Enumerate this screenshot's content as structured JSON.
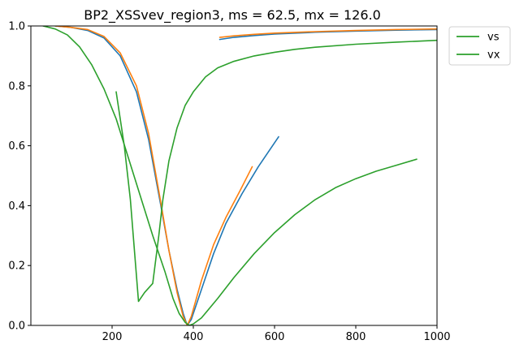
{
  "chart_data": {
    "type": "line",
    "title": "BP2_XSSvev_region3, ms = 62.5, mx = 126.0",
    "xlabel": "",
    "ylabel": "",
    "xlim": [
      0,
      1000
    ],
    "ylim": [
      0,
      1
    ],
    "xticks": [
      200,
      400,
      600,
      800,
      1000
    ],
    "yticks": [
      0.0,
      0.2,
      0.4,
      0.6,
      0.8,
      1.0
    ],
    "xtick_labels": [
      "200",
      "400",
      "600",
      "800",
      "1000"
    ],
    "ytick_labels": [
      "0.0",
      "0.2",
      "0.4",
      "0.6",
      "0.8",
      "1.0"
    ],
    "grid": false,
    "legend": {
      "placement": "outside-top-right",
      "entries": [
        {
          "label": "vs",
          "color": "#2ca02c"
        },
        {
          "label": "vx",
          "color": "#2ca02c"
        }
      ]
    },
    "series": [
      {
        "color": "#1f77b4",
        "points": [
          [
            60,
            1.0
          ],
          [
            100,
            0.995
          ],
          [
            140,
            0.985
          ],
          [
            180,
            0.96
          ],
          [
            220,
            0.9
          ],
          [
            260,
            0.78
          ],
          [
            290,
            0.62
          ],
          [
            320,
            0.4
          ],
          [
            340,
            0.25
          ],
          [
            360,
            0.12
          ],
          [
            375,
            0.04
          ],
          [
            385,
            0.0
          ],
          [
            395,
            0.02
          ],
          [
            420,
            0.12
          ],
          [
            450,
            0.24
          ],
          [
            480,
            0.34
          ],
          [
            520,
            0.44
          ],
          [
            560,
            0.53
          ],
          [
            610,
            0.63
          ]
        ]
      },
      {
        "color": "#ff7f0e",
        "points": [
          [
            60,
            1.0
          ],
          [
            100,
            0.995
          ],
          [
            140,
            0.988
          ],
          [
            180,
            0.965
          ],
          [
            220,
            0.91
          ],
          [
            260,
            0.8
          ],
          [
            290,
            0.64
          ],
          [
            320,
            0.41
          ],
          [
            340,
            0.25
          ],
          [
            360,
            0.11
          ],
          [
            375,
            0.03
          ],
          [
            385,
            0.0
          ],
          [
            395,
            0.03
          ],
          [
            420,
            0.15
          ],
          [
            450,
            0.27
          ],
          [
            480,
            0.36
          ],
          [
            515,
            0.45
          ],
          [
            545,
            0.53
          ]
        ]
      },
      {
        "color": "#1f77b4",
        "points": [
          [
            465,
            0.955
          ],
          [
            500,
            0.962
          ],
          [
            550,
            0.968
          ],
          [
            600,
            0.973
          ],
          [
            700,
            0.979
          ],
          [
            800,
            0.983
          ],
          [
            900,
            0.986
          ],
          [
            1000,
            0.988
          ]
        ]
      },
      {
        "color": "#ff7f0e",
        "points": [
          [
            465,
            0.962
          ],
          [
            500,
            0.967
          ],
          [
            550,
            0.972
          ],
          [
            600,
            0.976
          ],
          [
            700,
            0.981
          ],
          [
            800,
            0.985
          ],
          [
            900,
            0.988
          ],
          [
            1000,
            0.99
          ]
        ]
      },
      {
        "color": "#2ca02c",
        "points": [
          [
            30,
            1.0
          ],
          [
            60,
            0.99
          ],
          [
            90,
            0.97
          ],
          [
            120,
            0.93
          ],
          [
            150,
            0.87
          ],
          [
            180,
            0.79
          ],
          [
            210,
            0.69
          ],
          [
            240,
            0.56
          ],
          [
            270,
            0.43
          ],
          [
            300,
            0.3
          ],
          [
            330,
            0.18
          ],
          [
            350,
            0.09
          ],
          [
            365,
            0.04
          ],
          [
            380,
            0.01
          ],
          [
            390,
            0.0
          ],
          [
            400,
            0.005
          ],
          [
            420,
            0.025
          ],
          [
            460,
            0.09
          ],
          [
            500,
            0.16
          ],
          [
            550,
            0.24
          ],
          [
            600,
            0.31
          ],
          [
            650,
            0.37
          ],
          [
            700,
            0.42
          ],
          [
            750,
            0.46
          ],
          [
            800,
            0.49
          ],
          [
            850,
            0.515
          ],
          [
            900,
            0.535
          ],
          [
            950,
            0.555
          ]
        ]
      },
      {
        "color": "#2ca02c",
        "points": [
          [
            210,
            0.78
          ],
          [
            230,
            0.6
          ],
          [
            245,
            0.42
          ],
          [
            255,
            0.25
          ],
          [
            265,
            0.08
          ],
          [
            280,
            0.11
          ],
          [
            300,
            0.14
          ],
          [
            315,
            0.3
          ],
          [
            325,
            0.42
          ],
          [
            340,
            0.55
          ],
          [
            360,
            0.66
          ],
          [
            380,
            0.735
          ],
          [
            400,
            0.78
          ],
          [
            430,
            0.83
          ],
          [
            460,
            0.86
          ],
          [
            500,
            0.882
          ],
          [
            550,
            0.9
          ],
          [
            600,
            0.912
          ],
          [
            650,
            0.922
          ],
          [
            700,
            0.929
          ],
          [
            800,
            0.939
          ],
          [
            900,
            0.946
          ],
          [
            1000,
            0.952
          ]
        ]
      }
    ]
  }
}
